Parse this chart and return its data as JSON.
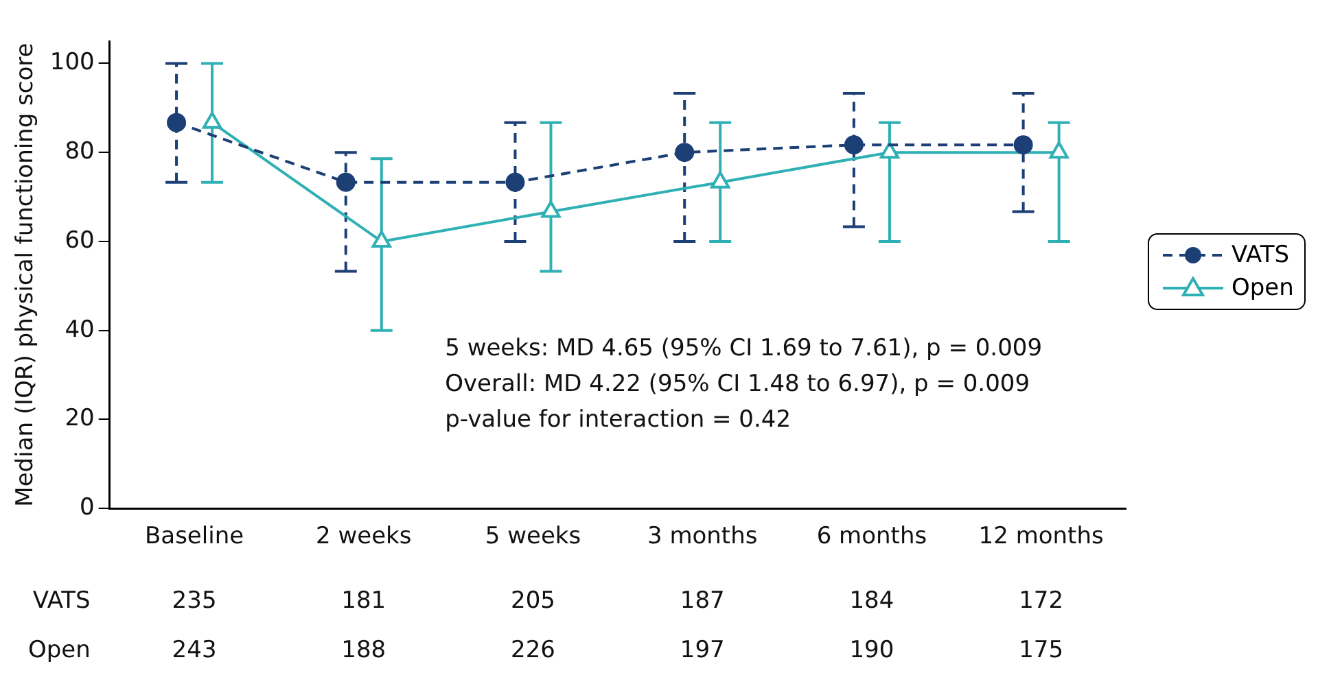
{
  "chart_data": {
    "type": "line",
    "ylabel": "Median (IQR) physical functioning score",
    "categories": [
      "Baseline",
      "2 weeks",
      "5 weeks",
      "3 months",
      "6 months",
      "12 months"
    ],
    "ylim": [
      0,
      105
    ],
    "yticks": [
      0,
      20,
      40,
      60,
      80,
      100
    ],
    "grid": false,
    "legend": "right",
    "series": [
      {
        "name": "VATS",
        "color": "#1c3f75",
        "marker": "circle",
        "line_style": "dashed",
        "values": [
          86.7,
          73.3,
          73.3,
          80,
          81.7,
          81.7
        ],
        "errors": [
          [
            73.3,
            100
          ],
          [
            53.3,
            80
          ],
          [
            60,
            86.7
          ],
          [
            60,
            93.3
          ],
          [
            63.3,
            93.3
          ],
          [
            66.7,
            93.3
          ]
        ]
      },
      {
        "name": "Open",
        "color": "#2fb0b4",
        "marker": "triangle",
        "line_style": "solid",
        "values": [
          86.7,
          60,
          66.7,
          73.3,
          80,
          80
        ],
        "errors": [
          [
            73.3,
            100
          ],
          [
            40,
            78.6
          ],
          [
            53.3,
            86.7
          ],
          [
            60,
            86.7
          ],
          [
            60,
            86.7
          ],
          [
            60,
            86.7
          ]
        ]
      }
    ],
    "annotations": [
      "5 weeks: MD 4.65 (95% CI 1.69 to 7.61), p = 0.009",
      "Overall: MD 4.22 (95% CI 1.48 to 6.97), p = 0.009",
      "p-value for interaction = 0.42",
      "VATS 235 181 205 187 184 172",
      "Open 243 188 226 197 190 175"
    ]
  }
}
